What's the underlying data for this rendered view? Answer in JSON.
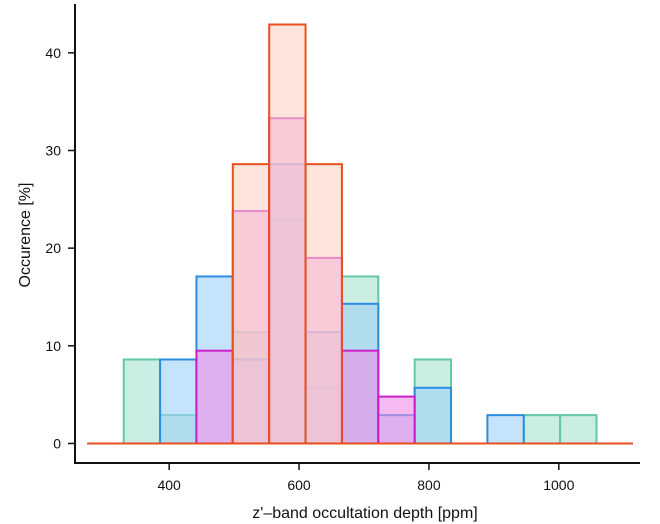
{
  "chart_data": {
    "type": "histogram",
    "title": "",
    "xlabel": "z'–band occultation depth [ppm]",
    "ylabel": "Occurence [%]",
    "xlim": [
      255,
      1125
    ],
    "ylim": [
      -2,
      45
    ],
    "xticks": [
      400,
      600,
      800,
      1000
    ],
    "yticks": [
      0,
      10,
      20,
      30,
      40
    ],
    "bin_width": 56,
    "grid": false,
    "legend": "none",
    "series": [
      {
        "color": "#64c7a6",
        "fill": "#a9e2cf",
        "bins": [
          {
            "x0": 330,
            "y": 8.6
          },
          {
            "x0": 386,
            "y": 2.9
          },
          {
            "x0": 498,
            "y": 11.4
          },
          {
            "x0": 554,
            "y": 22.9
          },
          {
            "x0": 610,
            "y": 5.7
          },
          {
            "x0": 666,
            "y": 17.1
          },
          {
            "x0": 778,
            "y": 8.6
          },
          {
            "x0": 946,
            "y": 2.9
          },
          {
            "x0": 1002,
            "y": 2.9
          }
        ]
      },
      {
        "color": "#2b8de0",
        "fill": "#9fd0f7",
        "bins": [
          {
            "x0": 386,
            "y": 8.6
          },
          {
            "x0": 442,
            "y": 17.1
          },
          {
            "x0": 498,
            "y": 8.6
          },
          {
            "x0": 554,
            "y": 28.6
          },
          {
            "x0": 610,
            "y": 11.4
          },
          {
            "x0": 666,
            "y": 14.3
          },
          {
            "x0": 722,
            "y": 2.9
          },
          {
            "x0": 778,
            "y": 5.7
          },
          {
            "x0": 890,
            "y": 2.9
          }
        ]
      },
      {
        "color": "#cc1fcc",
        "fill": "#ee8ee8",
        "bins": [
          {
            "x0": 442,
            "y": 9.5
          },
          {
            "x0": 498,
            "y": 23.8
          },
          {
            "x0": 554,
            "y": 33.3
          },
          {
            "x0": 610,
            "y": 19.0
          },
          {
            "x0": 666,
            "y": 9.5
          },
          {
            "x0": 722,
            "y": 4.8
          }
        ]
      },
      {
        "color": "#e8501e",
        "fill": "#fbd3c6",
        "bins": [
          {
            "x0": 498,
            "y": 28.6
          },
          {
            "x0": 554,
            "y": 42.9
          },
          {
            "x0": 610,
            "y": 28.6
          }
        ]
      }
    ]
  }
}
